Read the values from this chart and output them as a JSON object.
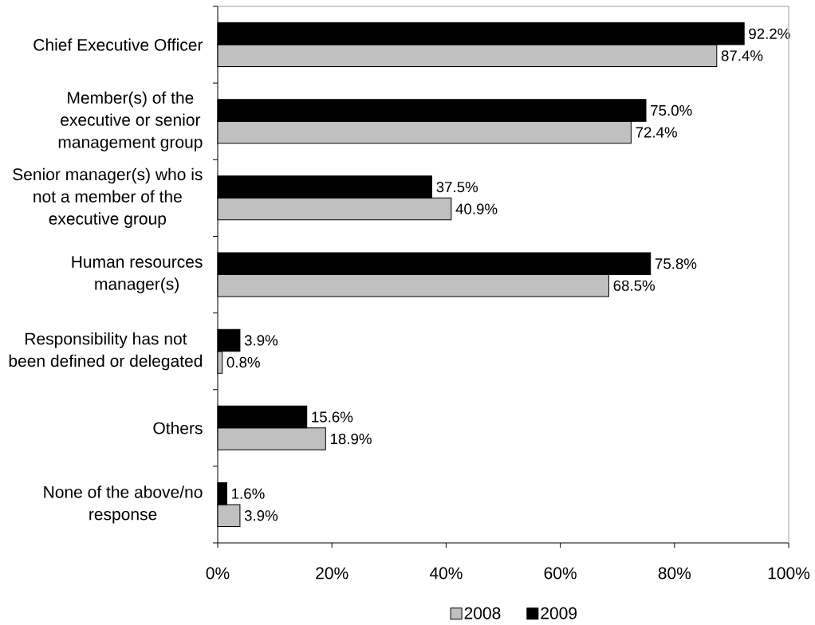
{
  "chart_data": {
    "type": "bar",
    "orientation": "horizontal",
    "categories": [
      "Chief Executive Officer",
      "Member(s) of the executive or senior management group",
      "Senior manager(s) who is not a member of the executive group",
      "Human resources manager(s)",
      "Responsibility has not been defined or delegated",
      "Others",
      "None of the above/no response"
    ],
    "series": [
      {
        "name": "2008",
        "color": "#c0c0c0",
        "values": [
          87.4,
          72.4,
          40.9,
          68.5,
          0.8,
          18.9,
          3.9
        ],
        "value_labels": [
          "87.4%",
          "72.4%",
          "40.9%",
          "68.5%",
          "0.8%",
          "18.9%",
          "3.9%"
        ]
      },
      {
        "name": "2009",
        "color": "#000000",
        "values": [
          92.2,
          75.0,
          37.5,
          75.8,
          3.9,
          15.6,
          1.6
        ],
        "value_labels": [
          "92.2%",
          "75.0%",
          "37.5%",
          "75.8%",
          "3.9%",
          "15.6%",
          "1.6%"
        ]
      }
    ],
    "xlim": [
      0,
      100
    ],
    "xticks": [
      {
        "value": 0,
        "label": "0%"
      },
      {
        "value": 20,
        "label": "20%"
      },
      {
        "value": 40,
        "label": "40%"
      },
      {
        "value": 60,
        "label": "60%"
      },
      {
        "value": 80,
        "label": "80%"
      },
      {
        "value": 100,
        "label": "100%"
      }
    ],
    "grid": false,
    "legend": "bottom"
  }
}
